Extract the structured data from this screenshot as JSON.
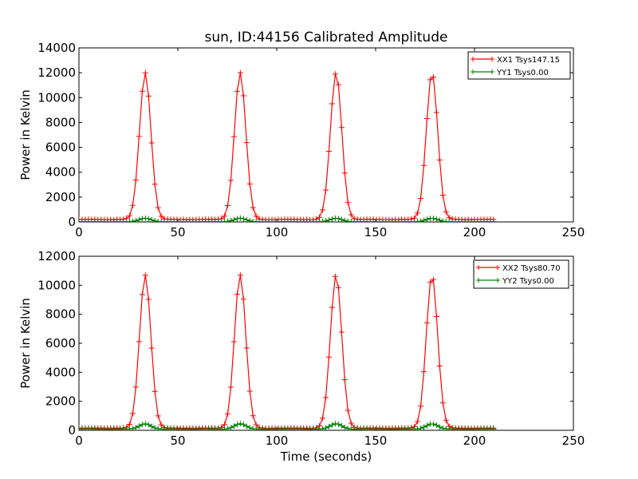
{
  "figure": {
    "title": "sun, ID:44156 Calibrated Amplitude",
    "xlabel": "Time (seconds)"
  },
  "chart_data": [
    {
      "type": "line",
      "title": "sun, ID:44156 Calibrated Amplitude",
      "xlabel": "",
      "ylabel": "Power in Kelvin",
      "xlim": [
        0,
        250
      ],
      "ylim": [
        0,
        14000
      ],
      "xticks": [
        0,
        50,
        100,
        150,
        200,
        250
      ],
      "yticks": [
        0,
        2000,
        4000,
        6000,
        8000,
        10000,
        12000,
        14000
      ],
      "legend_position": "top-right",
      "grid": false,
      "series": [
        {
          "name": "XX1 Tsys147.15",
          "color": "#ff0000",
          "marker": "+",
          "baseline": 200,
          "peak": 12000,
          "peak_times": [
            33.5,
            81.5,
            130,
            178.5
          ],
          "x_range": [
            0,
            210
          ]
        },
        {
          "name": "YY1 Tsys0.00",
          "color": "#008000",
          "marker": "+",
          "baseline": 20,
          "peak": 300,
          "peak_times": [
            33.5,
            81.5,
            130,
            178.5
          ],
          "x_range": [
            0,
            210
          ]
        }
      ]
    },
    {
      "type": "line",
      "title": "",
      "xlabel": "Time (seconds)",
      "ylabel": "Power in Kelvin",
      "xlim": [
        0,
        250
      ],
      "ylim": [
        0,
        12000
      ],
      "xticks": [
        0,
        50,
        100,
        150,
        200,
        250
      ],
      "yticks": [
        0,
        2000,
        4000,
        6000,
        8000,
        10000,
        12000
      ],
      "legend_position": "top-right",
      "grid": false,
      "series": [
        {
          "name": "XX2 Tsys80.70",
          "color": "#ff0000",
          "marker": "+",
          "baseline": 150,
          "peak": 10700,
          "peak_times": [
            33.5,
            81.5,
            130,
            178.5
          ],
          "x_range": [
            0,
            210
          ]
        },
        {
          "name": "YY2 Tsys0.00",
          "color": "#008000",
          "marker": "+",
          "baseline": 80,
          "peak": 450,
          "peak_times": [
            33.5,
            81.5,
            130,
            178.5
          ],
          "x_range": [
            0,
            210
          ]
        }
      ]
    }
  ]
}
